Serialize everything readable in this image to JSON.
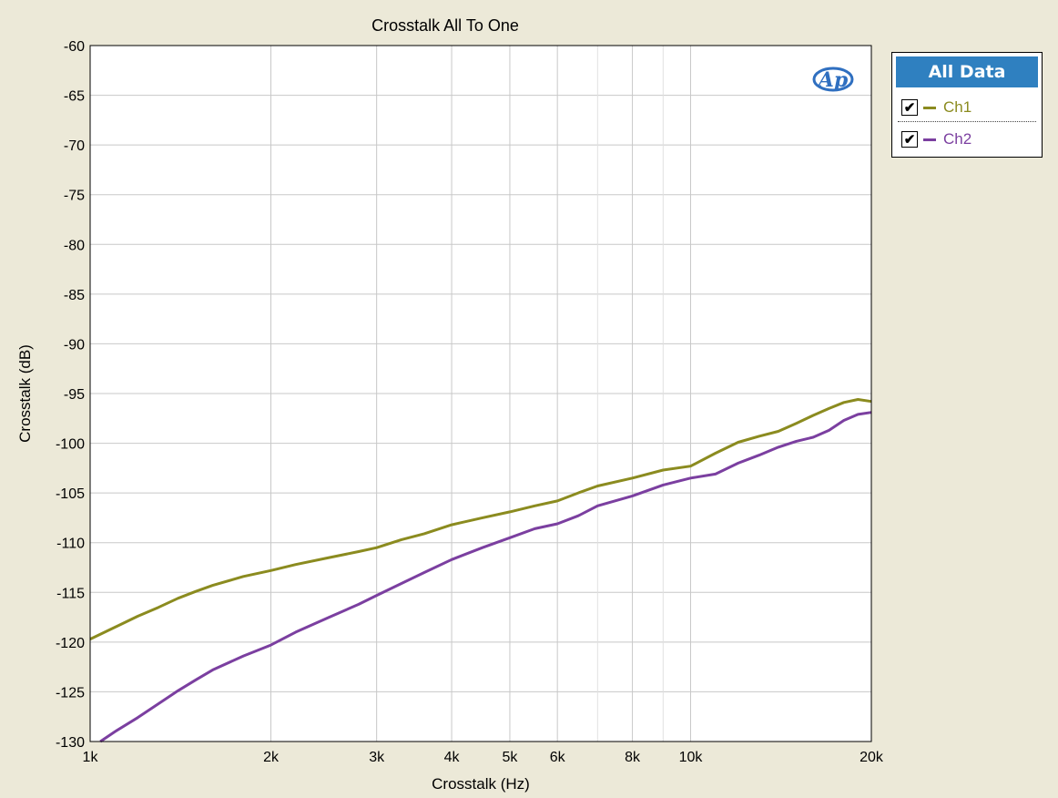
{
  "chart_data": {
    "type": "line",
    "title": "Crosstalk All To One",
    "xlabel": "Crosstalk (Hz)",
    "ylabel": "Crosstalk (dB)",
    "xscale": "log",
    "xlim": [
      1000,
      20000
    ],
    "ylim": [
      -130,
      -60
    ],
    "grid": true,
    "legend_position": "right",
    "x_ticks": [
      {
        "value": 1000,
        "label": "1k"
      },
      {
        "value": 2000,
        "label": "2k"
      },
      {
        "value": 3000,
        "label": "3k"
      },
      {
        "value": 4000,
        "label": "4k"
      },
      {
        "value": 5000,
        "label": "5k"
      },
      {
        "value": 6000,
        "label": "6k"
      },
      {
        "value": 8000,
        "label": "8k"
      },
      {
        "value": 10000,
        "label": "10k"
      },
      {
        "value": 20000,
        "label": "20k"
      }
    ],
    "x_minor_grid": [
      7000,
      9000
    ],
    "y_ticks": [
      -60,
      -65,
      -70,
      -75,
      -80,
      -85,
      -90,
      -95,
      -100,
      -105,
      -110,
      -115,
      -120,
      -125,
      -130
    ],
    "series": [
      {
        "name": "Ch1",
        "color": "#8b8b1f",
        "x": [
          1000,
          1100,
          1200,
          1300,
          1400,
          1500,
          1600,
          1800,
          2000,
          2200,
          2500,
          2800,
          3000,
          3300,
          3600,
          4000,
          4500,
          5000,
          5500,
          6000,
          6500,
          7000,
          8000,
          9000,
          10000,
          11000,
          12000,
          13000,
          14000,
          15000,
          16000,
          17000,
          18000,
          19000,
          20000
        ],
        "y": [
          -119.7,
          -118.5,
          -117.4,
          -116.5,
          -115.6,
          -114.9,
          -114.3,
          -113.4,
          -112.8,
          -112.2,
          -111.5,
          -110.9,
          -110.5,
          -109.7,
          -109.1,
          -108.2,
          -107.5,
          -106.9,
          -106.3,
          -105.8,
          -105.0,
          -104.3,
          -103.5,
          -102.7,
          -102.3,
          -101.0,
          -99.9,
          -99.3,
          -98.8,
          -98.0,
          -97.2,
          -96.5,
          -95.9,
          -95.6,
          -95.8
        ]
      },
      {
        "name": "Ch2",
        "color": "#7b3fa0",
        "x": [
          1040,
          1100,
          1200,
          1300,
          1400,
          1500,
          1600,
          1800,
          2000,
          2200,
          2500,
          2800,
          3000,
          3300,
          3600,
          4000,
          4500,
          5000,
          5500,
          6000,
          6500,
          7000,
          8000,
          9000,
          10000,
          11000,
          12000,
          13000,
          14000,
          15000,
          16000,
          17000,
          18000,
          19000,
          20000
        ],
        "y": [
          -130.0,
          -129.0,
          -127.6,
          -126.2,
          -124.9,
          -123.8,
          -122.8,
          -121.4,
          -120.3,
          -119.0,
          -117.5,
          -116.2,
          -115.3,
          -114.1,
          -113.0,
          -111.7,
          -110.5,
          -109.5,
          -108.6,
          -108.1,
          -107.3,
          -106.3,
          -105.3,
          -104.2,
          -103.5,
          -103.1,
          -102.0,
          -101.2,
          -100.4,
          -99.8,
          -99.4,
          -98.7,
          -97.7,
          -97.1,
          -96.9
        ]
      }
    ]
  },
  "legend": {
    "header": "All Data",
    "items": [
      {
        "label": "Ch1",
        "color": "#8b8b1f",
        "checked": "✔"
      },
      {
        "label": "Ch2",
        "color": "#7b3fa0",
        "checked": "✔"
      }
    ]
  },
  "logo": {
    "color": "#2f6fc0"
  }
}
